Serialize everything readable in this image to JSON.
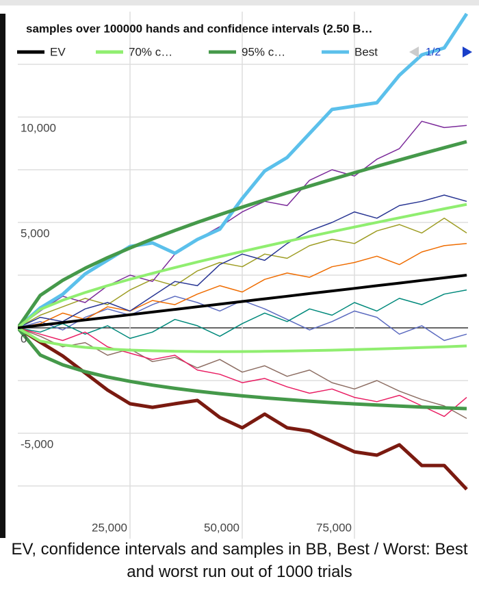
{
  "chart_data": {
    "type": "line",
    "title": "samples over 100000 hands and confidence intervals (2.50 B…",
    "x_title": "EV, confidence intervals and samples in BB, Best / Worst: Best and worst run out of 1000 trials",
    "legend_page": "1/2",
    "legend": "top",
    "grid": true,
    "x": [
      0,
      5000,
      10000,
      15000,
      20000,
      25000,
      30000,
      35000,
      40000,
      45000,
      50000,
      55000,
      60000,
      65000,
      70000,
      75000,
      80000,
      85000,
      90000,
      95000,
      100000
    ],
    "xlim": [
      0,
      100000
    ],
    "xticks": [
      {
        "value": 25000,
        "label": "25,000"
      },
      {
        "value": 50000,
        "label": "50,000"
      },
      {
        "value": 75000,
        "label": "75,000"
      }
    ],
    "ylim": [
      -10000,
      15000
    ],
    "yticks": [
      {
        "value": -5000,
        "label": "-5,000"
      },
      0,
      {
        "value": 5000,
        "label": "5,000"
      },
      {
        "value": 10000,
        "label": "10,000"
      }
    ],
    "minor_yticks": [
      -7500,
      -2500,
      2500,
      7500,
      12500
    ],
    "series": [
      {
        "name": "EV",
        "color": "#000000",
        "values": [
          0,
          125,
          250,
          375,
          500,
          625,
          750,
          875,
          1000,
          1125,
          1250,
          1375,
          1500,
          1625,
          1750,
          1875,
          2000,
          2125,
          2250,
          2375,
          2500
        ]
      },
      {
        "name": "70% c…",
        "color": "#90ee70",
        "values": [
          0,
          876,
          1312,
          1676,
          2002,
          2304,
          2589,
          2862,
          3124,
          3378,
          3624,
          3865,
          4101,
          4332,
          4560,
          4783,
          5003,
          5221,
          5436,
          5648,
          5858
        ]
      },
      {
        "color": "#90ee70",
        "values": [
          0,
          -626,
          -812,
          -926,
          -1002,
          -1054,
          -1089,
          -1112,
          -1124,
          -1128,
          -1124,
          -1115,
          -1101,
          -1082,
          -1060,
          -1033,
          -1003,
          -971,
          -936,
          -898,
          -858
        ]
      },
      {
        "name": "95% c…",
        "color": "#45994a",
        "values": [
          0,
          1540,
          2252,
          2827,
          3331,
          3790,
          4217,
          4620,
          5004,
          5371,
          5726,
          6069,
          6403,
          6728,
          7046,
          7357,
          7662,
          7961,
          8255,
          8545,
          8830
        ]
      },
      {
        "color": "#45994a",
        "values": [
          0,
          -1290,
          -1752,
          -2077,
          -2331,
          -2540,
          -2717,
          -2870,
          -3004,
          -3121,
          -3226,
          -3319,
          -3403,
          -3478,
          -3546,
          -3607,
          -3662,
          -3711,
          -3755,
          -3795,
          -3830
        ]
      },
      {
        "name": "Best",
        "color": "#5bc0eb",
        "values": [
          0,
          940,
          1590,
          2560,
          3210,
          3860,
          4030,
          3540,
          4190,
          4680,
          6140,
          7440,
          8080,
          9220,
          10360,
          10520,
          10680,
          11980,
          12950,
          13280,
          14900
        ]
      },
      {
        "color": "#7a1a10",
        "values": [
          0,
          -680,
          -1330,
          -2140,
          -2950,
          -3600,
          -3770,
          -3600,
          -3440,
          -4250,
          -4740,
          -4090,
          -4740,
          -4900,
          -5390,
          -5880,
          -6040,
          -5550,
          -6530,
          -6530,
          -7660
        ]
      },
      {
        "color": "#7b2a9a",
        "values": [
          0,
          800,
          1500,
          1200,
          2000,
          2500,
          2200,
          3500,
          4200,
          4800,
          5500,
          6000,
          5800,
          7000,
          7500,
          7200,
          8000,
          8500,
          9800,
          9500,
          9600
        ]
      },
      {
        "color": "#283593",
        "values": [
          0,
          500,
          300,
          900,
          1200,
          800,
          1500,
          2200,
          2000,
          3000,
          3500,
          3200,
          4000,
          4600,
          5000,
          5500,
          5200,
          5800,
          6000,
          6300,
          6000
        ]
      },
      {
        "color": "#e91e63",
        "values": [
          0,
          -300,
          -600,
          -200,
          -900,
          -1200,
          -1500,
          -1300,
          -2000,
          -2200,
          -2600,
          -2400,
          -2800,
          -3100,
          -2900,
          -3300,
          -3500,
          -3200,
          -3700,
          -4200,
          -3300
        ]
      },
      {
        "color": "#9e9d24",
        "values": [
          0,
          600,
          1000,
          1400,
          1100,
          1800,
          2300,
          2000,
          2700,
          3100,
          2900,
          3500,
          3300,
          3900,
          4200,
          4000,
          4600,
          4900,
          4500,
          5200,
          4500
        ]
      },
      {
        "color": "#ef6c00",
        "values": [
          0,
          200,
          700,
          400,
          1000,
          800,
          1300,
          1100,
          1600,
          2000,
          1700,
          2300,
          2600,
          2400,
          2900,
          3100,
          3400,
          3000,
          3600,
          3900,
          4000
        ]
      },
      {
        "color": "#00897b",
        "values": [
          0,
          -200,
          200,
          -300,
          100,
          -500,
          -200,
          400,
          100,
          -400,
          200,
          700,
          300,
          900,
          600,
          1200,
          800,
          1400,
          1100,
          1600,
          1800
        ]
      },
      {
        "color": "#8d6e63",
        "values": [
          0,
          -400,
          -900,
          -700,
          -1300,
          -1000,
          -1600,
          -1400,
          -1900,
          -1500,
          -2100,
          -1800,
          -2300,
          -2000,
          -2600,
          -2900,
          -2500,
          -3000,
          -3400,
          -3700,
          -4300
        ]
      },
      {
        "color": "#5c6bc0",
        "values": [
          0,
          300,
          -100,
          500,
          900,
          600,
          1100,
          1500,
          1200,
          800,
          1300,
          900,
          400,
          -100,
          300,
          800,
          500,
          -300,
          100,
          -600,
          -300
        ]
      }
    ]
  }
}
